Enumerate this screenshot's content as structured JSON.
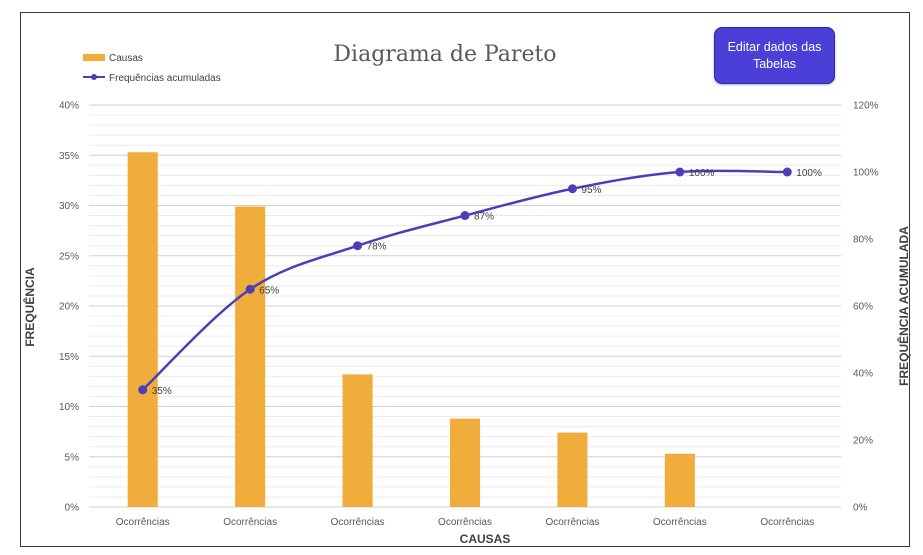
{
  "edit_button": {
    "label": "Editar dados das Tabelas"
  },
  "chart_data": {
    "type": "bar",
    "title": "Diagrama de Pareto",
    "xlabel": "CAUSAS",
    "ylabel": "FREQUÊNCIA",
    "y2label": "FREQUÊNCIA ACUMULADA",
    "categories": [
      "Ocorrências",
      "Ocorrências",
      "Ocorrências",
      "Ocorrências",
      "Ocorrências",
      "Ocorrências",
      "Ocorrências"
    ],
    "ylim": [
      0,
      40
    ],
    "y_ticks": [
      "0%",
      "5%",
      "10%",
      "15%",
      "20%",
      "25%",
      "30%",
      "35%",
      "40%"
    ],
    "y2lim": [
      0,
      120
    ],
    "y2_ticks": [
      "0%",
      "20%",
      "40%",
      "60%",
      "80%",
      "100%",
      "120%"
    ],
    "grid": true,
    "legend_position": "top-left",
    "series": [
      {
        "name": "Causas",
        "type": "bar",
        "color": "#f0ad3c",
        "values": [
          35.3,
          29.9,
          13.2,
          8.8,
          7.4,
          5.3,
          0
        ]
      },
      {
        "name": "Frequências acumuladas",
        "type": "line",
        "axis": "secondary",
        "color": "#4a3fb8",
        "values": [
          35,
          65,
          78,
          87,
          95,
          100,
          100
        ],
        "labels": [
          "35%",
          "65%",
          "78%",
          "87%",
          "95%",
          "100%",
          "100%"
        ]
      }
    ]
  }
}
